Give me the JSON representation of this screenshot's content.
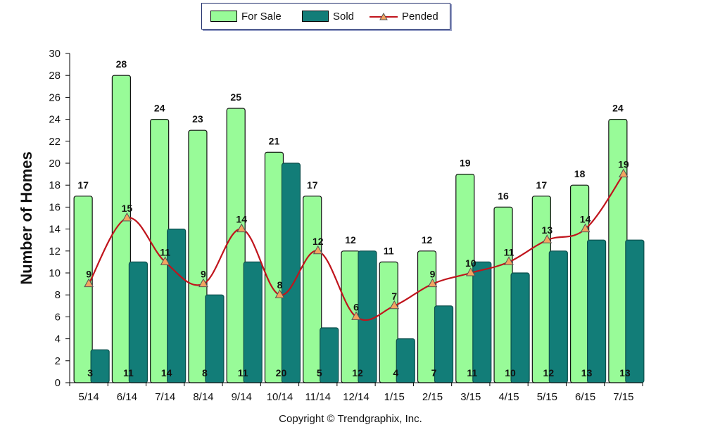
{
  "chart_data": {
    "type": "bar",
    "categories": [
      "5/14",
      "6/14",
      "7/14",
      "8/14",
      "9/14",
      "10/14",
      "11/14",
      "12/14",
      "1/15",
      "2/15",
      "3/15",
      "4/15",
      "5/15",
      "6/15",
      "7/15"
    ],
    "series": [
      {
        "name": "For Sale",
        "type": "bar",
        "color": "#98fb98",
        "values": [
          17,
          28,
          24,
          23,
          25,
          21,
          17,
          12,
          11,
          12,
          19,
          16,
          17,
          18,
          24
        ]
      },
      {
        "name": "Sold",
        "type": "bar",
        "color": "#127d78",
        "values": [
          3,
          11,
          14,
          8,
          11,
          20,
          5,
          12,
          4,
          7,
          11,
          10,
          12,
          13,
          13
        ]
      },
      {
        "name": "Pended",
        "type": "line",
        "color": "#c0141c",
        "marker_color": "#f4a460",
        "values": [
          9,
          15,
          11,
          9,
          14,
          8,
          12,
          6,
          7,
          9,
          10,
          11,
          13,
          14,
          19
        ]
      }
    ],
    "ylabel": "Number of Homes",
    "xlabel": "",
    "ylim": [
      0,
      30
    ],
    "yticks": [
      0,
      2,
      4,
      6,
      8,
      10,
      12,
      14,
      16,
      18,
      20,
      22,
      24,
      26,
      28,
      30
    ],
    "grid": false,
    "legend_position": "top-center"
  },
  "legend": {
    "for_sale": "For Sale",
    "sold": "Sold",
    "pended": "Pended"
  },
  "footer": {
    "copyright": "Copyright © Trendgraphix, Inc."
  }
}
